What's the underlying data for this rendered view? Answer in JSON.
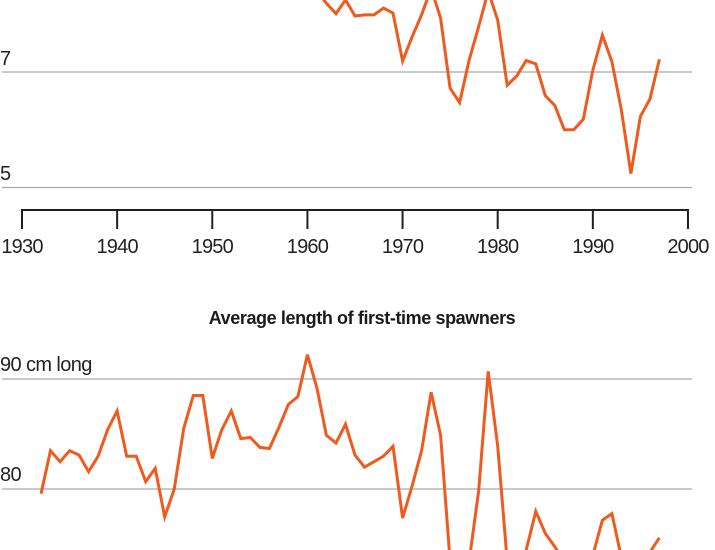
{
  "colors": {
    "series": "#ef5a1e",
    "grid": "#a7a9ac",
    "axis": "#231f20"
  },
  "chart_data": [
    {
      "type": "line",
      "title": "",
      "xlabel": "",
      "ylabel": "",
      "x_ticks": [
        "1930",
        "1940",
        "1950",
        "1960",
        "1970",
        "1980",
        "1990",
        "2000"
      ],
      "xlim": [
        1930,
        2000
      ],
      "y_ticks": [
        {
          "value": 7,
          "label": "7"
        },
        {
          "value": 5,
          "label": "5"
        }
      ],
      "grid": true,
      "series": [
        {
          "x": [
            1961,
            1962,
            1963,
            1964,
            1965,
            1966,
            1967,
            1968,
            1969,
            1970,
            1971,
            1972,
            1973,
            1974,
            1975,
            1976,
            1977,
            1978,
            1979,
            1980,
            1981,
            1982,
            1983,
            1984,
            1985,
            1986,
            1987,
            1988,
            1989,
            1990,
            1991,
            1992,
            1993,
            1994,
            1995,
            1996,
            1997
          ],
          "y": [
            8.4,
            8.19,
            8.01,
            8.25,
            7.97,
            7.99,
            7.99,
            8.11,
            8.02,
            7.19,
            7.61,
            7.99,
            8.45,
            7.93,
            6.72,
            6.47,
            7.21,
            7.79,
            8.4,
            7.9,
            6.77,
            6.93,
            7.2,
            7.14,
            6.59,
            6.42,
            6.0,
            6.0,
            6.18,
            7.03,
            7.64,
            7.18,
            6.34,
            5.24,
            6.23,
            6.53,
            7.22
          ]
        }
      ]
    },
    {
      "type": "line",
      "title": "Average length of first-time spawners",
      "xlabel": "",
      "ylabel": "",
      "y_ticks": [
        {
          "value": 90,
          "label": "90 cm long"
        },
        {
          "value": 80,
          "label": "80"
        }
      ],
      "grid": true,
      "series": [
        {
          "x": [
            1932,
            1933,
            1934,
            1935,
            1936,
            1937,
            1938,
            1939,
            1940,
            1941,
            1942,
            1943,
            1944,
            1945,
            1946,
            1947,
            1948,
            1949,
            1950,
            1951,
            1952,
            1953,
            1954,
            1955,
            1956,
            1957,
            1958,
            1959,
            1960,
            1961,
            1962,
            1963,
            1964,
            1965,
            1966,
            1967,
            1968,
            1969,
            1970,
            1971,
            1972,
            1973,
            1974,
            1975,
            1976,
            1977,
            1978,
            1979,
            1980,
            1981,
            1982,
            1983,
            1984,
            1985,
            1986,
            1987,
            1988,
            1989,
            1990,
            1991,
            1992,
            1993,
            1994,
            1995,
            1996,
            1997
          ],
          "y": [
            79.6,
            83.5,
            82.5,
            83.5,
            83.1,
            81.6,
            83.0,
            85.4,
            87.1,
            83.0,
            83.0,
            80.7,
            81.9,
            77.5,
            80.0,
            85.5,
            88.5,
            88.5,
            82.8,
            85.4,
            87.1,
            84.6,
            84.7,
            83.8,
            83.7,
            85.6,
            87.7,
            88.4,
            92.2,
            89.2,
            84.9,
            84.2,
            85.9,
            83.1,
            82.0,
            82.5,
            83.0,
            83.9,
            77.4,
            80.3,
            83.5,
            88.8,
            84.9,
            73.5,
            73.0,
            73.5,
            79.9,
            90.7,
            83.9,
            73.5,
            73.0,
            74.5,
            78.0,
            76.0,
            74.8,
            73.5,
            73.5,
            74.0,
            74.0,
            77.2,
            77.8,
            73.8,
            73.5,
            73.8,
            74.3,
            75.6
          ]
        }
      ]
    }
  ]
}
